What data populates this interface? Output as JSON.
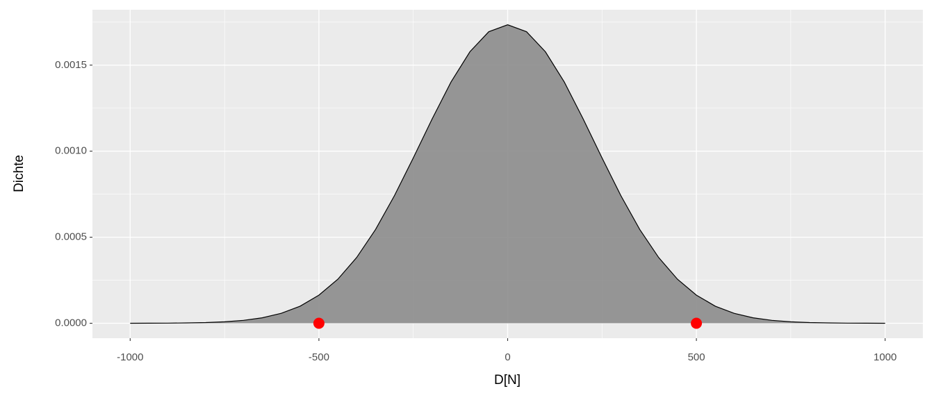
{
  "chart_data": {
    "type": "area",
    "x_label": "D[N]",
    "y_label": "Dichte",
    "x": [
      -1000,
      -950,
      -900,
      -850,
      -800,
      -750,
      -700,
      -650,
      -600,
      -550,
      -500,
      -450,
      -400,
      -350,
      -300,
      -250,
      -200,
      -150,
      -100,
      -50,
      0,
      50,
      100,
      150,
      200,
      250,
      300,
      350,
      400,
      450,
      500,
      550,
      600,
      650,
      700,
      750,
      800,
      850,
      900,
      950,
      1000
    ],
    "series": [
      {
        "name": "Dichte",
        "color": "#8c8c8c",
        "line_color": "#000000",
        "values": [
          1e-07,
          3e-07,
          8e-07,
          1.9e-06,
          4.1e-06,
          8.5e-06,
          1.69e-05,
          3.2e-05,
          5.77e-05,
          9.94e-05,
          0.0001633,
          0.000256,
          0.000382,
          0.000545,
          0.000741,
          0.000961,
          0.001188,
          0.001402,
          0.001578,
          0.001694,
          0.0017345,
          0.001694,
          0.001578,
          0.001402,
          0.001188,
          0.000961,
          0.000741,
          0.000545,
          0.000382,
          0.000256,
          0.0001633,
          9.94e-05,
          5.77e-05,
          3.2e-05,
          1.69e-05,
          8.5e-06,
          4.1e-06,
          1.9e-06,
          8e-07,
          3e-07,
          1e-07
        ]
      }
    ],
    "points": {
      "color": "#ff0000",
      "x": [
        -500,
        500
      ],
      "values": [
        0,
        0
      ]
    },
    "xlim": [
      -1100,
      1100
    ],
    "ylim": [
      -8.68e-05,
      0.001822
    ],
    "xticks": [
      -1000,
      -500,
      0,
      500,
      1000
    ],
    "xminor": [
      -750,
      -250,
      250,
      750
    ],
    "yticks": [
      {
        "value": 0,
        "label": "0.0000"
      },
      {
        "value": 0.0005,
        "label": "0.0005"
      },
      {
        "value": 0.001,
        "label": "0.0010"
      },
      {
        "value": 0.0015,
        "label": "0.0015"
      }
    ],
    "yminor": [
      0.00025,
      0.00075,
      0.00125,
      0.00175
    ],
    "grid": true
  }
}
